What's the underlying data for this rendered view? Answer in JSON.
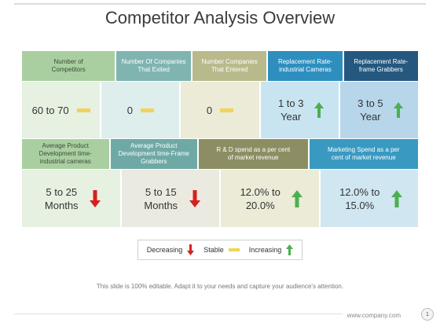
{
  "title": "Competitor Analysis Overview",
  "row1": [
    {
      "header": "Number of Competitors",
      "value": "60 to 70",
      "trend": "stable"
    },
    {
      "header": "Number Of Companies That Exited",
      "value": "0",
      "trend": "stable"
    },
    {
      "header": "Number Companies That Entered",
      "value": "0",
      "trend": "stable"
    },
    {
      "header": "Replacement Rate-industrial Cameras",
      "value": "1 to 3 Year",
      "trend": "increasing"
    },
    {
      "header": "Replacement Rate-frame Grabbers",
      "value": "3 to 5 Year",
      "trend": "increasing"
    }
  ],
  "row2": [
    {
      "header": "Average Product Development time-industrial cameras",
      "value": "5 to 25 Months",
      "trend": "decreasing"
    },
    {
      "header": "Average Product Development time-Frame Grabbers",
      "value": "5 to 15 Months",
      "trend": "decreasing"
    },
    {
      "header": "R & D spend as a per cent of market revenue",
      "value": "12.0% to 20.0%",
      "trend": "increasing"
    },
    {
      "header": "Marketing Spend as a per cent of market revenue",
      "value": "12.0% to 15.0%",
      "trend": "increasing"
    }
  ],
  "legend": {
    "decreasing": "Decreasing",
    "stable": "Stable",
    "increasing": "Increasing"
  },
  "note": "This slide is 100% editable. Adapt it to your needs and capture your audience's attention.",
  "footer": {
    "url": "www.company.com",
    "page": "1"
  },
  "colors": {
    "up_arrow": "#4caf50",
    "down_arrow": "#d62020",
    "stable": "#f2d25a"
  }
}
